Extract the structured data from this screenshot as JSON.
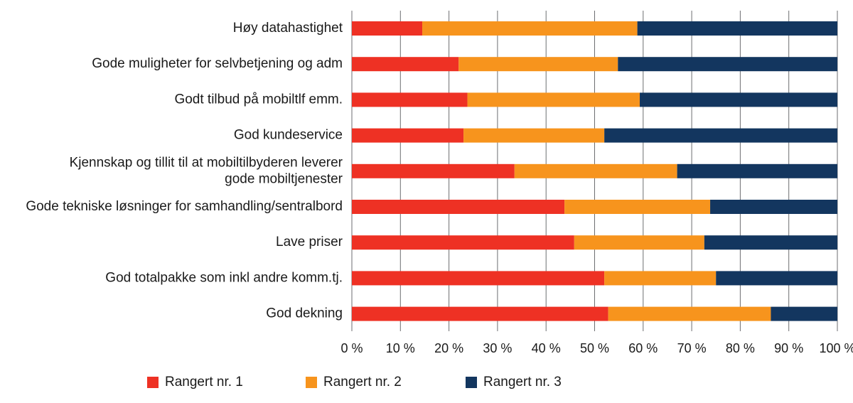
{
  "chart_data": {
    "type": "bar",
    "orientation": "horizontal",
    "stacked": true,
    "title": "",
    "xlabel": "",
    "ylabel": "",
    "xlim": [
      0,
      100
    ],
    "x_ticks": [
      0,
      10,
      20,
      30,
      40,
      50,
      60,
      70,
      80,
      90,
      100
    ],
    "x_tick_labels": [
      "0 %",
      "10 %",
      "20 %",
      "30 %",
      "40 %",
      "50 %",
      "60 %",
      "70 %",
      "80 %",
      "90 %",
      "100 %"
    ],
    "grid": true,
    "legend_position": "bottom",
    "categories": [
      [
        "Høy datahastighet"
      ],
      [
        "Gode muligheter for selvbetjening og adm"
      ],
      [
        "Godt tilbud på mobiltlf emm."
      ],
      [
        "God kundeservice"
      ],
      [
        "Kjennskap og tillit til at mobiltilbyderen leverer",
        "gode mobiltjenester"
      ],
      [
        "Gode tekniske løsninger for samhandling/sentralbord"
      ],
      [
        "Lave priser"
      ],
      [
        "God totalpakke som inkl andre komm.tj."
      ],
      [
        "God dekning"
      ]
    ],
    "series": [
      {
        "name": "Rangert nr. 1",
        "color": "#ee3124",
        "values": [
          14.5,
          22,
          23.8,
          23,
          33.5,
          43.8,
          45.8,
          52,
          52.8
        ]
      },
      {
        "name": "Rangert nr. 2",
        "color": "#f7941d",
        "values": [
          44.3,
          32.8,
          35.5,
          29,
          33.5,
          30,
          26.8,
          23,
          33.5
        ]
      },
      {
        "name": "Rangert nr. 3",
        "color": "#13365f",
        "values": [
          41.2,
          45.2,
          40.7,
          48,
          33,
          26.2,
          27.4,
          25,
          13.7
        ]
      }
    ]
  }
}
